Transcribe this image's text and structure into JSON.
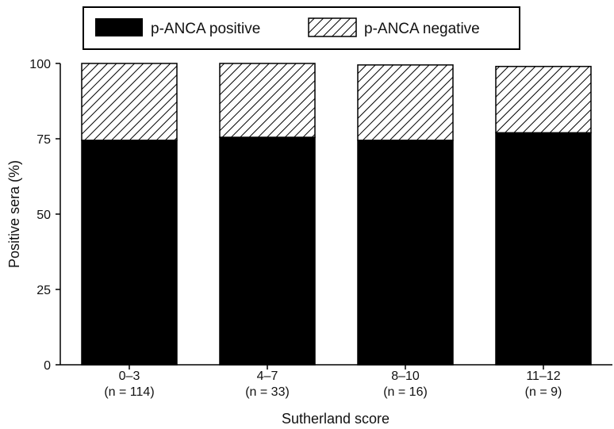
{
  "chart_data": {
    "type": "bar",
    "stacked": true,
    "categories": [
      "0–3",
      "4–7",
      "8–10",
      "11–12"
    ],
    "category_sublabels": [
      "(n = 114)",
      "(n = 33)",
      "(n = 16)",
      "(n = 9)"
    ],
    "series": [
      {
        "name": "p-ANCA positive",
        "values": [
          74.5,
          75.5,
          74.5,
          77
        ],
        "fill": "solid",
        "color": "#000000"
      },
      {
        "name": "p-ANCA negative",
        "values": [
          25.5,
          24.5,
          25,
          22
        ],
        "fill": "hatched",
        "color": "#000000"
      }
    ],
    "ylabel": "Positive sera (%)",
    "xlabel": "Sutherland score",
    "ylim": [
      0,
      100
    ],
    "yticks": [
      0,
      25,
      50,
      75,
      100
    ],
    "grid": false,
    "legend_position": "top"
  }
}
